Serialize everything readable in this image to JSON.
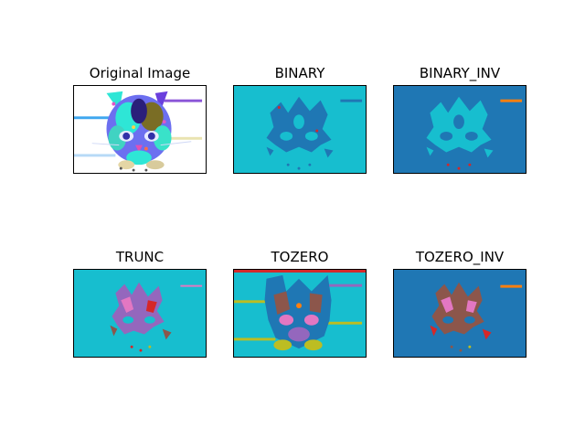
{
  "figure": {
    "panels": [
      {
        "title": "Original Image",
        "icon": "cat-face-rainbow-image",
        "background": "#ffffff"
      },
      {
        "title": "BINARY",
        "icon": "cat-face-binary-image",
        "background": "#17becf"
      },
      {
        "title": "BINARY_INV",
        "icon": "cat-face-binary-inv-image",
        "background": "#1f77b4"
      },
      {
        "title": "TRUNC",
        "icon": "cat-face-trunc-image",
        "background": "#17becf"
      },
      {
        "title": "TOZERO",
        "icon": "cat-face-tozero-image",
        "background": "#17becf"
      },
      {
        "title": "TOZERO_INV",
        "icon": "cat-face-tozero-inv-image",
        "background": "#1f77b4"
      }
    ]
  }
}
